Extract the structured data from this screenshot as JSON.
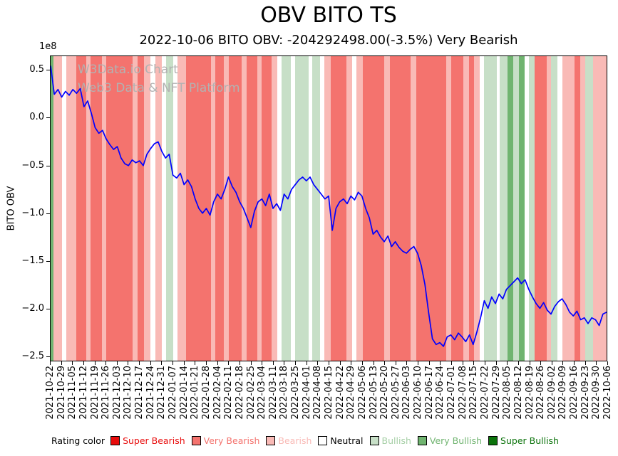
{
  "title": "OBV BITO TS",
  "subtitle": "2022-10-06 BITO OBV: -204292498.00(-3.5%) Very Bearish",
  "watermark": {
    "line1": "W3Data.io Chart",
    "line2": "Web3 Data & NFT Platform"
  },
  "rating_colors": {
    "super_bearish": "#e80c0c",
    "very_bearish": "#f4736e",
    "bearish": "#f9bab6",
    "neutral": "#ffffff",
    "bullish": "#c7dfc7",
    "very_bullish": "#70b470",
    "super_bullish": "#0b730b"
  },
  "legend": {
    "label": "Rating color",
    "items": [
      {
        "label": "Super Bearish",
        "color": "#e80c0c",
        "text_color": "#e80c0c"
      },
      {
        "label": "Very Bearish",
        "color": "#f4736e",
        "text_color": "#f4736e"
      },
      {
        "label": "Bearish",
        "color": "#f9bab6",
        "text_color": "#f9bab6"
      },
      {
        "label": "Neutral",
        "color": "#ffffff",
        "text_color": "#000000"
      },
      {
        "label": "Bullish",
        "color": "#c7dfc7",
        "text_color": "#a5cfa5"
      },
      {
        "label": "Very Bullish",
        "color": "#70b470",
        "text_color": "#70b470"
      },
      {
        "label": "Super Bullish",
        "color": "#0b730b",
        "text_color": "#0b730b"
      }
    ]
  },
  "chart_data": {
    "type": "line",
    "title": "OBV BITO TS",
    "ylabel": "BITO OBV",
    "y_offset_text": "1e8",
    "y_scale": 100000000,
    "ylim_scaled": [
      -2.55,
      0.65
    ],
    "x_range": [
      "2021-10-22",
      "2022-10-06"
    ],
    "latest": {
      "date": "2022-10-06",
      "obv": -204292498.0,
      "change_pct": "-3.5%",
      "rating": "Very Bearish"
    },
    "y_ticks": [
      {
        "label": "0.5",
        "v": 0.5
      },
      {
        "label": "0.0",
        "v": 0.0
      },
      {
        "label": "−0.5",
        "v": -0.5
      },
      {
        "label": "−1.0",
        "v": -1.0
      },
      {
        "label": "−1.5",
        "v": -1.5
      },
      {
        "label": "−2.0",
        "v": -2.0
      },
      {
        "label": "−2.5",
        "v": -2.5
      }
    ],
    "x_ticks": [
      "2021-10-22",
      "2021-10-29",
      "2021-11-05",
      "2021-11-12",
      "2021-11-19",
      "2021-11-26",
      "2021-12-03",
      "2021-12-10",
      "2021-12-17",
      "2021-12-24",
      "2021-12-31",
      "2022-01-07",
      "2022-01-14",
      "2022-01-21",
      "2022-01-28",
      "2022-02-04",
      "2022-02-11",
      "2022-02-18",
      "2022-02-25",
      "2022-03-04",
      "2022-03-11",
      "2022-03-18",
      "2022-03-25",
      "2022-04-01",
      "2022-04-08",
      "2022-04-15",
      "2022-04-22",
      "2022-04-29",
      "2022-05-06",
      "2022-05-13",
      "2022-05-20",
      "2022-05-27",
      "2022-06-03",
      "2022-06-10",
      "2022-06-17",
      "2022-06-24",
      "2022-07-01",
      "2022-07-08",
      "2022-07-15",
      "2022-07-22",
      "2022-07-29",
      "2022-08-05",
      "2022-08-12",
      "2022-08-19",
      "2022-08-26",
      "2022-09-02",
      "2022-09-09",
      "2022-09-16",
      "2022-09-23",
      "2022-09-30",
      "2022-10-06"
    ],
    "series": [
      {
        "name": "BITO OBV",
        "color": "#0000ff",
        "values_1e8": [
          0.55,
          0.25,
          0.3,
          0.22,
          0.28,
          0.24,
          0.3,
          0.26,
          0.31,
          0.12,
          0.18,
          0.05,
          -0.1,
          -0.16,
          -0.13,
          -0.22,
          -0.28,
          -0.33,
          -0.3,
          -0.42,
          -0.48,
          -0.5,
          -0.44,
          -0.47,
          -0.45,
          -0.5,
          -0.38,
          -0.32,
          -0.27,
          -0.25,
          -0.35,
          -0.42,
          -0.38,
          -0.6,
          -0.63,
          -0.58,
          -0.7,
          -0.65,
          -0.72,
          -0.85,
          -0.95,
          -1.0,
          -0.95,
          -1.02,
          -0.88,
          -0.8,
          -0.85,
          -0.75,
          -0.62,
          -0.72,
          -0.78,
          -0.88,
          -0.95,
          -1.05,
          -1.15,
          -0.98,
          -0.88,
          -0.85,
          -0.92,
          -0.8,
          -0.95,
          -0.9,
          -0.97,
          -0.8,
          -0.85,
          -0.75,
          -0.7,
          -0.65,
          -0.62,
          -0.66,
          -0.62,
          -0.7,
          -0.75,
          -0.8,
          -0.85,
          -0.82,
          -1.18,
          -0.95,
          -0.88,
          -0.85,
          -0.9,
          -0.82,
          -0.86,
          -0.78,
          -0.82,
          -0.95,
          -1.05,
          -1.22,
          -1.18,
          -1.25,
          -1.3,
          -1.24,
          -1.35,
          -1.3,
          -1.36,
          -1.4,
          -1.42,
          -1.38,
          -1.35,
          -1.42,
          -1.55,
          -1.75,
          -2.05,
          -2.32,
          -2.38,
          -2.36,
          -2.4,
          -2.3,
          -2.28,
          -2.33,
          -2.26,
          -2.3,
          -2.35,
          -2.28,
          -2.38,
          -2.25,
          -2.1,
          -1.92,
          -2.0,
          -1.88,
          -1.95,
          -1.85,
          -1.9,
          -1.8,
          -1.76,
          -1.72,
          -1.68,
          -1.74,
          -1.7,
          -1.8,
          -1.88,
          -1.95,
          -2.0,
          -1.94,
          -2.02,
          -2.06,
          -1.98,
          -1.93,
          -1.9,
          -1.96,
          -2.04,
          -2.08,
          -2.03,
          -2.12,
          -2.1,
          -2.16,
          -2.1,
          -2.12,
          -2.18,
          -2.06,
          -2.04
        ]
      }
    ],
    "bands_week_units": 50,
    "bands": [
      {
        "s": 0.0,
        "e": 0.25,
        "r": "very_bullish"
      },
      {
        "s": 0.25,
        "e": 1.0,
        "r": "bearish"
      },
      {
        "s": 1.0,
        "e": 1.4,
        "r": "neutral"
      },
      {
        "s": 1.4,
        "e": 2.3,
        "r": "bearish"
      },
      {
        "s": 2.3,
        "e": 3.2,
        "r": "very_bearish"
      },
      {
        "s": 3.2,
        "e": 3.6,
        "r": "bearish"
      },
      {
        "s": 3.6,
        "e": 4.6,
        "r": "very_bearish"
      },
      {
        "s": 4.6,
        "e": 5.0,
        "r": "bearish"
      },
      {
        "s": 5.0,
        "e": 7.4,
        "r": "very_bearish"
      },
      {
        "s": 7.4,
        "e": 7.8,
        "r": "bearish"
      },
      {
        "s": 7.8,
        "e": 8.4,
        "r": "very_bearish"
      },
      {
        "s": 8.4,
        "e": 9.0,
        "r": "bearish"
      },
      {
        "s": 9.0,
        "e": 9.4,
        "r": "neutral"
      },
      {
        "s": 9.4,
        "e": 10.0,
        "r": "bearish"
      },
      {
        "s": 10.0,
        "e": 10.4,
        "r": "neutral"
      },
      {
        "s": 10.4,
        "e": 11.0,
        "r": "bullish"
      },
      {
        "s": 11.0,
        "e": 11.4,
        "r": "neutral"
      },
      {
        "s": 11.4,
        "e": 12.2,
        "r": "bearish"
      },
      {
        "s": 12.2,
        "e": 14.4,
        "r": "very_bearish"
      },
      {
        "s": 14.4,
        "e": 14.8,
        "r": "bearish"
      },
      {
        "s": 14.8,
        "e": 15.6,
        "r": "very_bearish"
      },
      {
        "s": 15.6,
        "e": 16.0,
        "r": "bearish"
      },
      {
        "s": 16.0,
        "e": 17.2,
        "r": "very_bearish"
      },
      {
        "s": 17.2,
        "e": 17.6,
        "r": "bearish"
      },
      {
        "s": 17.6,
        "e": 18.6,
        "r": "very_bearish"
      },
      {
        "s": 18.6,
        "e": 19.0,
        "r": "bearish"
      },
      {
        "s": 19.0,
        "e": 19.9,
        "r": "very_bearish"
      },
      {
        "s": 19.9,
        "e": 20.4,
        "r": "bearish"
      },
      {
        "s": 20.4,
        "e": 20.8,
        "r": "neutral"
      },
      {
        "s": 20.8,
        "e": 21.6,
        "r": "bullish"
      },
      {
        "s": 21.6,
        "e": 22.0,
        "r": "neutral"
      },
      {
        "s": 22.0,
        "e": 23.2,
        "r": "bullish"
      },
      {
        "s": 23.2,
        "e": 23.5,
        "r": "neutral"
      },
      {
        "s": 23.5,
        "e": 24.2,
        "r": "bullish"
      },
      {
        "s": 24.2,
        "e": 24.6,
        "r": "neutral"
      },
      {
        "s": 24.6,
        "e": 25.2,
        "r": "bearish"
      },
      {
        "s": 25.2,
        "e": 26.6,
        "r": "very_bearish"
      },
      {
        "s": 26.6,
        "e": 27.1,
        "r": "bearish"
      },
      {
        "s": 27.1,
        "e": 27.5,
        "r": "neutral"
      },
      {
        "s": 27.5,
        "e": 28.1,
        "r": "bearish"
      },
      {
        "s": 28.1,
        "e": 30.0,
        "r": "very_bearish"
      },
      {
        "s": 30.0,
        "e": 30.5,
        "r": "bearish"
      },
      {
        "s": 30.5,
        "e": 32.4,
        "r": "very_bearish"
      },
      {
        "s": 32.4,
        "e": 32.9,
        "r": "bearish"
      },
      {
        "s": 32.9,
        "e": 35.6,
        "r": "very_bearish"
      },
      {
        "s": 35.6,
        "e": 36.0,
        "r": "bearish"
      },
      {
        "s": 36.0,
        "e": 37.1,
        "r": "very_bearish"
      },
      {
        "s": 37.1,
        "e": 37.6,
        "r": "bearish"
      },
      {
        "s": 37.6,
        "e": 38.1,
        "r": "very_bearish"
      },
      {
        "s": 38.1,
        "e": 38.6,
        "r": "bearish"
      },
      {
        "s": 38.6,
        "e": 39.0,
        "r": "neutral"
      },
      {
        "s": 39.0,
        "e": 40.1,
        "r": "bullish"
      },
      {
        "s": 40.1,
        "e": 40.4,
        "r": "neutral"
      },
      {
        "s": 40.4,
        "e": 41.1,
        "r": "bullish"
      },
      {
        "s": 41.1,
        "e": 41.6,
        "r": "very_bullish"
      },
      {
        "s": 41.6,
        "e": 42.1,
        "r": "bullish"
      },
      {
        "s": 42.1,
        "e": 42.6,
        "r": "very_bullish"
      },
      {
        "s": 42.6,
        "e": 43.0,
        "r": "neutral"
      },
      {
        "s": 43.0,
        "e": 43.5,
        "r": "bullish"
      },
      {
        "s": 43.5,
        "e": 44.6,
        "r": "very_bearish"
      },
      {
        "s": 44.6,
        "e": 45.0,
        "r": "bearish"
      },
      {
        "s": 45.0,
        "e": 45.6,
        "r": "bullish"
      },
      {
        "s": 45.6,
        "e": 46.0,
        "r": "neutral"
      },
      {
        "s": 46.0,
        "e": 47.1,
        "r": "bearish"
      },
      {
        "s": 47.1,
        "e": 47.6,
        "r": "very_bearish"
      },
      {
        "s": 47.6,
        "e": 48.1,
        "r": "bearish"
      },
      {
        "s": 48.1,
        "e": 48.8,
        "r": "bullish"
      },
      {
        "s": 48.8,
        "e": 50.0,
        "r": "bearish"
      }
    ]
  }
}
